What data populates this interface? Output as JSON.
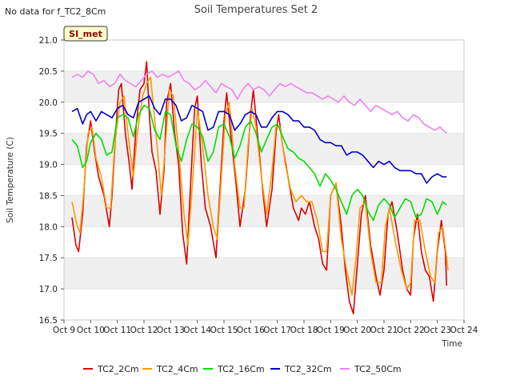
{
  "header": {
    "note": "No data for f_TC2_8Cm",
    "badge": "SI_met"
  },
  "chart_data": {
    "type": "line",
    "title": "Soil Temperatures Set 2",
    "xlabel": "Time",
    "ylabel": "Soil Temperature (C)",
    "ylim": [
      16.5,
      21.0
    ],
    "xlim": [
      9,
      24
    ],
    "y_ticks": [
      "16.5",
      "17.0",
      "17.5",
      "18.0",
      "18.5",
      "19.0",
      "19.5",
      "20.0",
      "20.5",
      "21.0"
    ],
    "x_ticks": [
      "Oct 9",
      "Oct 10",
      "Oct 11",
      "Oct 12",
      "Oct 13",
      "Oct 14",
      "Oct 15",
      "Oct 16",
      "Oct 17",
      "Oct 18",
      "Oct 19",
      "Oct 20",
      "Oct 21",
      "Oct 22",
      "Oct 23",
      "Oct 24"
    ],
    "grid": "alternating horizontal bands",
    "legend_position": "bottom",
    "series": [
      {
        "name": "TC2_2Cm",
        "color": "#dd0000",
        "x": [
          9.3,
          9.45,
          9.55,
          9.7,
          9.85,
          10.0,
          10.15,
          10.3,
          10.5,
          10.7,
          10.8,
          10.95,
          11.05,
          11.15,
          11.3,
          11.45,
          11.55,
          11.7,
          11.85,
          12.0,
          12.1,
          12.2,
          12.3,
          12.45,
          12.6,
          12.75,
          12.85,
          13.0,
          13.15,
          13.3,
          13.45,
          13.6,
          13.75,
          13.9,
          14.0,
          14.15,
          14.3,
          14.5,
          14.7,
          14.85,
          15.0,
          15.1,
          15.25,
          15.45,
          15.6,
          15.8,
          16.0,
          16.1,
          16.3,
          16.45,
          16.6,
          16.8,
          16.95,
          17.05,
          17.2,
          17.4,
          17.6,
          17.8,
          17.9,
          18.05,
          18.2,
          18.4,
          18.55,
          18.7,
          18.85,
          19.0,
          19.2,
          19.4,
          19.55,
          19.7,
          19.85,
          20.0,
          20.15,
          20.3,
          20.5,
          20.7,
          20.85,
          21.0,
          21.15,
          21.3,
          21.5,
          21.7,
          21.85,
          22.0,
          22.1,
          22.25,
          22.4,
          22.55,
          22.7,
          22.85,
          23.0,
          23.15,
          23.3
        ],
        "values": [
          18.15,
          17.7,
          17.6,
          18.2,
          19.3,
          19.7,
          19.2,
          18.8,
          18.5,
          18.0,
          18.5,
          19.6,
          20.2,
          20.3,
          19.5,
          19.0,
          18.6,
          19.6,
          20.2,
          20.3,
          20.65,
          19.8,
          19.2,
          18.9,
          18.2,
          18.9,
          20.0,
          20.3,
          19.5,
          19.0,
          17.9,
          17.4,
          18.7,
          19.9,
          20.1,
          19.0,
          18.3,
          18.0,
          17.5,
          18.6,
          19.7,
          20.15,
          19.5,
          18.7,
          18.0,
          18.6,
          19.8,
          20.2,
          19.3,
          18.6,
          18.0,
          18.6,
          19.5,
          19.8,
          19.3,
          18.8,
          18.3,
          18.1,
          18.3,
          18.2,
          18.4,
          18.0,
          17.8,
          17.4,
          17.3,
          18.5,
          18.7,
          18.0,
          17.3,
          16.8,
          16.6,
          17.4,
          18.2,
          18.5,
          17.7,
          17.2,
          16.9,
          17.3,
          18.2,
          18.4,
          17.9,
          17.3,
          17.0,
          16.9,
          17.8,
          18.2,
          17.6,
          17.3,
          17.2,
          16.8,
          17.6,
          18.1,
          17.6
        ],
        "values_end": [
          17.05
        ]
      },
      {
        "name": "TC2_4Cm",
        "color": "#ff9900",
        "x": [
          9.3,
          9.5,
          9.6,
          9.75,
          9.9,
          10.05,
          10.2,
          10.4,
          10.6,
          10.75,
          10.9,
          11.1,
          11.25,
          11.45,
          11.6,
          11.75,
          11.95,
          12.1,
          12.25,
          12.45,
          12.65,
          12.8,
          12.95,
          13.1,
          13.3,
          13.5,
          13.65,
          13.85,
          14.0,
          14.2,
          14.4,
          14.6,
          14.75,
          14.9,
          15.05,
          15.2,
          15.4,
          15.6,
          15.75,
          15.9,
          16.05,
          16.2,
          16.4,
          16.6,
          16.8,
          16.95,
          17.1,
          17.3,
          17.5,
          17.7,
          17.9,
          18.1,
          18.3,
          18.5,
          18.7,
          18.85,
          19.0,
          19.2,
          19.4,
          19.6,
          19.8,
          19.95,
          20.1,
          20.3,
          20.5,
          20.7,
          20.9,
          21.05,
          21.2,
          21.45,
          21.65,
          21.85,
          22.0,
          22.15,
          22.35,
          22.55,
          22.75,
          22.9,
          23.05,
          23.2,
          23.35
        ],
        "values": [
          18.4,
          18.0,
          17.9,
          18.6,
          19.5,
          19.6,
          19.1,
          18.8,
          18.3,
          18.3,
          19.3,
          20.0,
          20.1,
          19.3,
          18.8,
          19.5,
          20.1,
          20.3,
          20.4,
          19.5,
          18.5,
          19.3,
          20.2,
          20.1,
          19.2,
          18.2,
          17.7,
          18.9,
          19.9,
          19.3,
          18.5,
          18.0,
          17.8,
          18.8,
          19.8,
          20.0,
          19.0,
          18.3,
          18.3,
          19.3,
          19.9,
          19.6,
          18.8,
          18.2,
          18.9,
          19.6,
          19.6,
          19.0,
          18.6,
          18.4,
          18.5,
          18.4,
          18.4,
          18.1,
          17.6,
          17.6,
          18.5,
          18.7,
          17.8,
          17.3,
          16.9,
          17.5,
          18.3,
          18.4,
          17.6,
          17.1,
          17.1,
          18.0,
          18.3,
          17.7,
          17.3,
          17.0,
          17.1,
          18.1,
          18.1,
          17.6,
          17.2,
          17.1,
          17.9,
          18.0,
          17.5
        ],
        "values_end": [
          17.3
        ]
      },
      {
        "name": "TC2_16Cm",
        "color": "#00dd00",
        "x": [
          9.3,
          9.5,
          9.7,
          9.85,
          10.0,
          10.2,
          10.4,
          10.6,
          10.8,
          11.0,
          11.2,
          11.4,
          11.6,
          11.8,
          12.0,
          12.2,
          12.4,
          12.6,
          12.8,
          13.0,
          13.2,
          13.4,
          13.6,
          13.8,
          14.0,
          14.2,
          14.4,
          14.6,
          14.8,
          15.0,
          15.2,
          15.4,
          15.6,
          15.8,
          16.0,
          16.2,
          16.4,
          16.6,
          16.8,
          17.0,
          17.2,
          17.4,
          17.6,
          17.8,
          18.0,
          18.2,
          18.4,
          18.6,
          18.8,
          19.0,
          19.2,
          19.4,
          19.6,
          19.8,
          20.0,
          20.2,
          20.4,
          20.6,
          20.8,
          21.0,
          21.2,
          21.4,
          21.6,
          21.8,
          22.0,
          22.2,
          22.4,
          22.6,
          22.8,
          23.0,
          23.2,
          23.35
        ],
        "values": [
          19.4,
          19.3,
          18.95,
          19.05,
          19.35,
          19.5,
          19.4,
          19.15,
          19.2,
          19.75,
          19.8,
          19.75,
          19.45,
          19.8,
          19.95,
          19.9,
          19.55,
          19.4,
          19.85,
          19.8,
          19.3,
          19.05,
          19.4,
          19.65,
          19.6,
          19.45,
          19.05,
          19.2,
          19.6,
          19.65,
          19.45,
          19.1,
          19.3,
          19.6,
          19.7,
          19.5,
          19.2,
          19.4,
          19.6,
          19.65,
          19.45,
          19.25,
          19.2,
          19.1,
          19.05,
          18.95,
          18.85,
          18.65,
          18.85,
          18.75,
          18.6,
          18.4,
          18.2,
          18.5,
          18.6,
          18.5,
          18.25,
          18.1,
          18.35,
          18.45,
          18.35,
          18.15,
          18.3,
          18.45,
          18.4,
          18.15,
          18.2,
          18.45,
          18.4,
          18.2,
          18.4,
          18.35
        ]
      },
      {
        "name": "TC2_32Cm",
        "color": "#0000cc",
        "x": [
          9.3,
          9.5,
          9.7,
          9.85,
          10.0,
          10.2,
          10.4,
          10.6,
          10.8,
          11.0,
          11.2,
          11.4,
          11.6,
          11.8,
          12.0,
          12.2,
          12.4,
          12.6,
          12.8,
          13.0,
          13.2,
          13.4,
          13.6,
          13.8,
          14.0,
          14.2,
          14.4,
          14.6,
          14.8,
          15.0,
          15.2,
          15.4,
          15.6,
          15.8,
          16.0,
          16.2,
          16.4,
          16.6,
          16.8,
          17.0,
          17.2,
          17.4,
          17.6,
          17.8,
          18.0,
          18.2,
          18.4,
          18.6,
          18.8,
          19.0,
          19.2,
          19.4,
          19.6,
          19.8,
          20.0,
          20.2,
          20.4,
          20.6,
          20.8,
          21.0,
          21.2,
          21.4,
          21.6,
          21.8,
          22.0,
          22.2,
          22.4,
          22.6,
          22.8,
          23.0,
          23.2,
          23.35
        ],
        "values": [
          19.85,
          19.9,
          19.65,
          19.8,
          19.85,
          19.7,
          19.85,
          19.8,
          19.75,
          19.9,
          19.95,
          19.8,
          19.75,
          20.0,
          20.05,
          20.1,
          19.9,
          19.8,
          20.05,
          20.05,
          19.95,
          19.7,
          19.75,
          19.95,
          19.9,
          19.85,
          19.55,
          19.6,
          19.85,
          19.85,
          19.8,
          19.55,
          19.65,
          19.8,
          19.85,
          19.8,
          19.6,
          19.6,
          19.75,
          19.85,
          19.85,
          19.8,
          19.7,
          19.7,
          19.6,
          19.6,
          19.55,
          19.4,
          19.35,
          19.35,
          19.3,
          19.3,
          19.15,
          19.2,
          19.2,
          19.15,
          19.05,
          18.95,
          19.05,
          19.0,
          19.05,
          18.95,
          18.9,
          18.9,
          18.9,
          18.85,
          18.85,
          18.7,
          18.8,
          18.85,
          18.8,
          18.8
        ]
      },
      {
        "name": "TC2_50Cm",
        "color": "#ee82ee",
        "x": [
          9.3,
          9.5,
          9.7,
          9.9,
          10.1,
          10.3,
          10.5,
          10.7,
          10.9,
          11.1,
          11.3,
          11.5,
          11.7,
          11.9,
          12.1,
          12.3,
          12.5,
          12.7,
          12.9,
          13.1,
          13.3,
          13.5,
          13.7,
          13.9,
          14.1,
          14.3,
          14.5,
          14.7,
          14.9,
          15.1,
          15.3,
          15.5,
          15.7,
          15.9,
          16.1,
          16.3,
          16.5,
          16.7,
          16.9,
          17.1,
          17.3,
          17.5,
          17.7,
          17.9,
          18.1,
          18.3,
          18.5,
          18.7,
          18.9,
          19.1,
          19.3,
          19.5,
          19.7,
          19.9,
          20.1,
          20.3,
          20.5,
          20.7,
          20.9,
          21.1,
          21.3,
          21.5,
          21.7,
          21.9,
          22.1,
          22.3,
          22.5,
          22.7,
          22.9,
          23.1,
          23.35
        ],
        "values": [
          20.4,
          20.45,
          20.4,
          20.5,
          20.45,
          20.3,
          20.35,
          20.25,
          20.3,
          20.45,
          20.35,
          20.3,
          20.25,
          20.35,
          20.45,
          20.5,
          20.4,
          20.45,
          20.4,
          20.45,
          20.5,
          20.35,
          20.3,
          20.2,
          20.25,
          20.35,
          20.25,
          20.15,
          20.3,
          20.25,
          20.2,
          20.05,
          20.2,
          20.3,
          20.2,
          20.25,
          20.2,
          20.1,
          20.2,
          20.3,
          20.25,
          20.3,
          20.25,
          20.2,
          20.15,
          20.15,
          20.1,
          20.05,
          20.1,
          20.05,
          20.0,
          20.1,
          20.0,
          19.95,
          20.05,
          19.95,
          19.85,
          19.95,
          19.9,
          19.85,
          19.8,
          19.85,
          19.75,
          19.7,
          19.8,
          19.75,
          19.65,
          19.6,
          19.55,
          19.6,
          19.5
        ]
      }
    ]
  }
}
